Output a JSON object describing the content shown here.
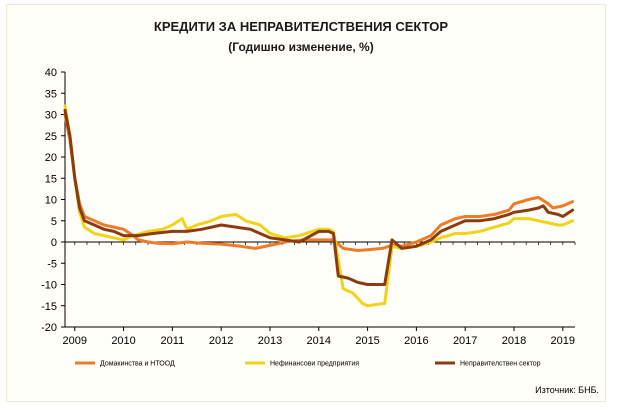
{
  "chart_data": {
    "type": "line",
    "title": "КРЕДИТИ ЗА НЕПРАВИТЕЛСТВЕНИЯ СЕКТОР",
    "subtitle": "(Годишно изменение, %)",
    "xlabel": "",
    "ylabel": "",
    "x_ticks": [
      "2009",
      "2010",
      "2011",
      "2012",
      "2013",
      "2014",
      "2015",
      "2016",
      "2017",
      "2018",
      "2019"
    ],
    "xlim": [
      2008.8,
      2019.25
    ],
    "ylim": [
      -20,
      40
    ],
    "y_ticks": [
      40,
      35,
      30,
      25,
      20,
      15,
      10,
      5,
      0,
      -5,
      -10,
      -15,
      -20
    ],
    "grid": false,
    "legend_position": "bottom",
    "source": "Източник: БНБ.",
    "series": [
      {
        "name": "Домакинства и НТООД",
        "color": "#ef7a27",
        "x": [
          2008.8,
          2008.9,
          2009.0,
          2009.1,
          2009.2,
          2009.4,
          2009.6,
          2009.8,
          2010.0,
          2010.2,
          2010.3,
          2010.5,
          2010.7,
          2011.0,
          2011.3,
          2011.6,
          2012.0,
          2012.4,
          2012.7,
          2013.0,
          2013.4,
          2013.7,
          2014.0,
          2014.3,
          2014.5,
          2014.8,
          2015.0,
          2015.3,
          2015.5,
          2015.7,
          2016.0,
          2016.3,
          2016.5,
          2016.8,
          2017.0,
          2017.3,
          2017.6,
          2017.9,
          2018.0,
          2018.3,
          2018.5,
          2018.7,
          2018.8,
          2019.0,
          2019.2
        ],
        "values": [
          30,
          24,
          15,
          9,
          6,
          5,
          4,
          3.5,
          3,
          1.5,
          0.5,
          0,
          -0.3,
          -0.4,
          0,
          -0.3,
          -0.5,
          -1,
          -1.5,
          -0.8,
          0.2,
          0.5,
          0.5,
          0.5,
          -1.5,
          -2,
          -1.8,
          -1.5,
          -0.8,
          -1,
          0,
          1.5,
          4,
          5.5,
          6,
          6,
          6.5,
          7.5,
          9,
          10,
          10.5,
          9,
          8,
          8.5,
          9.5
        ]
      },
      {
        "name": "Нефинансови предприятия",
        "color": "#f2d31a",
        "x": [
          2008.8,
          2008.9,
          2009.0,
          2009.1,
          2009.2,
          2009.4,
          2009.6,
          2009.8,
          2010.0,
          2010.2,
          2010.5,
          2010.8,
          2011.0,
          2011.2,
          2011.3,
          2011.5,
          2011.8,
          2012.0,
          2012.3,
          2012.5,
          2012.8,
          2013.0,
          2013.3,
          2013.6,
          2014.0,
          2014.2,
          2014.3,
          2014.5,
          2014.7,
          2014.9,
          2015.0,
          2015.3,
          2015.35,
          2015.5,
          2015.7,
          2016.0,
          2016.3,
          2016.5,
          2016.8,
          2017.0,
          2017.3,
          2017.6,
          2017.9,
          2018.0,
          2018.3,
          2018.5,
          2018.7,
          2018.9,
          2019.0,
          2019.2
        ],
        "values": [
          32,
          25,
          15,
          7,
          3.5,
          2,
          1.5,
          1,
          0.5,
          1.5,
          2.5,
          3,
          4,
          5.5,
          3,
          4,
          5,
          6,
          6.5,
          5,
          4,
          2,
          1,
          1.5,
          3,
          3,
          2.5,
          -11,
          -12,
          -14.5,
          -15,
          -14.5,
          -14.5,
          -1,
          -1.5,
          -1,
          0,
          1,
          2,
          2,
          2.5,
          3.5,
          4.5,
          5.5,
          5.5,
          5,
          4.5,
          4,
          4,
          5
        ]
      },
      {
        "name": "Неправителствен сектор",
        "color": "#8b3b10",
        "x": [
          2008.8,
          2008.9,
          2009.0,
          2009.1,
          2009.2,
          2009.4,
          2009.6,
          2009.8,
          2010.0,
          2010.3,
          2010.6,
          2011.0,
          2011.3,
          2011.6,
          2012.0,
          2012.3,
          2012.6,
          2013.0,
          2013.3,
          2013.6,
          2014.0,
          2014.2,
          2014.3,
          2014.4,
          2014.6,
          2014.8,
          2015.0,
          2015.3,
          2015.35,
          2015.5,
          2015.7,
          2016.0,
          2016.3,
          2016.5,
          2016.8,
          2017.0,
          2017.3,
          2017.6,
          2017.9,
          2018.0,
          2018.3,
          2018.5,
          2018.6,
          2018.7,
          2018.9,
          2019.0,
          2019.2
        ],
        "values": [
          31,
          25,
          15,
          8,
          5,
          4,
          3,
          2.5,
          1.5,
          1.5,
          2,
          2.5,
          2.5,
          3,
          4,
          3.5,
          3,
          1,
          0.5,
          0,
          2.5,
          2.5,
          2,
          -8,
          -8.5,
          -9.5,
          -10,
          -10,
          -10,
          0.5,
          -1.5,
          -1,
          0.5,
          2.5,
          4,
          5,
          5,
          5.5,
          6.5,
          7,
          7.5,
          8,
          8.5,
          7,
          6.5,
          6,
          7.5
        ]
      }
    ]
  }
}
